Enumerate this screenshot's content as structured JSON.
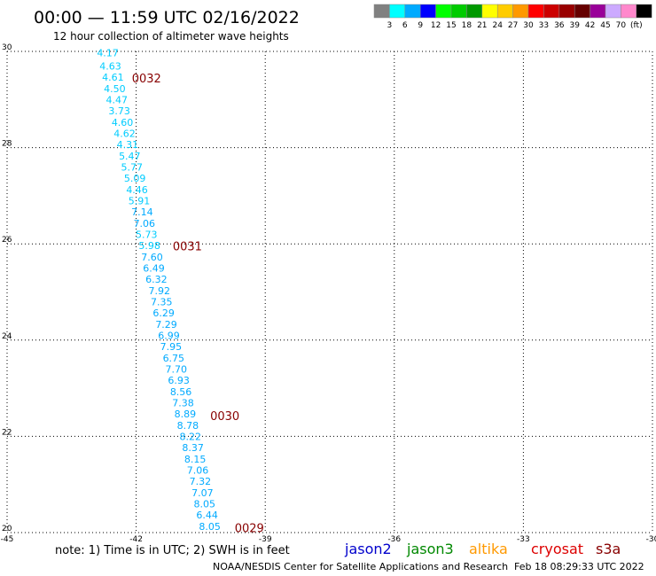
{
  "header": {
    "title": "00:00 — 11:59 UTC 02/16/2022",
    "subtitle": "12 hour collection of altimeter wave heights"
  },
  "color_scale": {
    "colors": [
      "#808080",
      "#00ffff",
      "#00aaff",
      "#0000ff",
      "#00ff00",
      "#00cc00",
      "#009900",
      "#ffff00",
      "#ffcc00",
      "#ff9900",
      "#ff0000",
      "#cc0000",
      "#990000",
      "#660000",
      "#990099",
      "#ccaaff",
      "#ff88cc",
      "#000000"
    ],
    "labels": [
      "3",
      "6",
      "9",
      "12",
      "15",
      "18",
      "21",
      "24",
      "27",
      "30",
      "33",
      "36",
      "39",
      "42",
      "45",
      "70",
      "(ft)"
    ]
  },
  "chart_data": {
    "type": "scatter",
    "title": "00:00 — 11:59 UTC 02/16/2022",
    "subtitle": "12 hour collection of altimeter wave heights",
    "xlim": [
      -45,
      -30
    ],
    "ylim": [
      20,
      30
    ],
    "x_ticks": [
      "-45",
      "-42",
      "-39",
      "-36",
      "-33",
      "-30"
    ],
    "y_ticks": [
      "30",
      "28",
      "26",
      "24",
      "22",
      "20"
    ],
    "y_tick_values": [
      30,
      28,
      26,
      24,
      22,
      20
    ],
    "grid": true,
    "points": [
      {
        "x": -42.66,
        "y": 29.97,
        "label": "4.17",
        "color": "#00ccff"
      },
      {
        "x": -42.6,
        "y": 29.7,
        "label": "4.63",
        "color": "#00ccff"
      },
      {
        "x": -42.54,
        "y": 29.47,
        "label": "4.61",
        "color": "#00ccff"
      },
      {
        "x": -42.5,
        "y": 29.23,
        "label": "4.50",
        "color": "#00ccff"
      },
      {
        "x": -42.45,
        "y": 29,
        "label": "4.47",
        "color": "#00ccff"
      },
      {
        "x": -42.39,
        "y": 28.77,
        "label": "3.73",
        "color": "#00ccff"
      },
      {
        "x": -42.32,
        "y": 28.53,
        "label": "4.60",
        "color": "#00ccff"
      },
      {
        "x": -42.27,
        "y": 28.3,
        "label": "4.62",
        "color": "#00ccff"
      },
      {
        "x": -42.2,
        "y": 28.07,
        "label": "4.31",
        "color": "#00ccff"
      },
      {
        "x": -42.15,
        "y": 27.83,
        "label": "5.47",
        "color": "#00ccff"
      },
      {
        "x": -42.1,
        "y": 27.6,
        "label": "5.77",
        "color": "#00ccff"
      },
      {
        "x": -42.03,
        "y": 27.37,
        "label": "5.09",
        "color": "#00ccff"
      },
      {
        "x": -41.98,
        "y": 27.13,
        "label": "4.46",
        "color": "#00ccff"
      },
      {
        "x": -41.93,
        "y": 26.9,
        "label": "5.91",
        "color": "#00ccff"
      },
      {
        "x": -41.86,
        "y": 26.67,
        "label": "7.14",
        "color": "#00aaff"
      },
      {
        "x": -41.81,
        "y": 26.43,
        "label": "7.06",
        "color": "#00aaff"
      },
      {
        "x": -41.76,
        "y": 26.2,
        "label": "5.73",
        "color": "#00ccff"
      },
      {
        "x": -41.69,
        "y": 25.97,
        "label": "5.98",
        "color": "#00ccff"
      },
      {
        "x": -41.63,
        "y": 25.73,
        "label": "7.60",
        "color": "#00aaff"
      },
      {
        "x": -41.59,
        "y": 25.5,
        "label": "6.49",
        "color": "#00aaff"
      },
      {
        "x": -41.53,
        "y": 25.27,
        "label": "6.32",
        "color": "#00aaff"
      },
      {
        "x": -41.46,
        "y": 25.03,
        "label": "7.92",
        "color": "#00aaff"
      },
      {
        "x": -41.41,
        "y": 24.8,
        "label": "7.35",
        "color": "#00aaff"
      },
      {
        "x": -41.36,
        "y": 24.57,
        "label": "6.29",
        "color": "#00aaff"
      },
      {
        "x": -41.3,
        "y": 24.33,
        "label": "7.29",
        "color": "#00aaff"
      },
      {
        "x": -41.24,
        "y": 24.1,
        "label": "6.99",
        "color": "#00aaff"
      },
      {
        "x": -41.19,
        "y": 23.87,
        "label": "7.95",
        "color": "#00aaff"
      },
      {
        "x": -41.13,
        "y": 23.63,
        "label": "6.75",
        "color": "#00aaff"
      },
      {
        "x": -41.07,
        "y": 23.4,
        "label": "7.70",
        "color": "#00aaff"
      },
      {
        "x": -41.01,
        "y": 23.17,
        "label": "6.93",
        "color": "#00aaff"
      },
      {
        "x": -40.96,
        "y": 22.93,
        "label": "8.56",
        "color": "#00aaff"
      },
      {
        "x": -40.91,
        "y": 22.7,
        "label": "7.38",
        "color": "#00aaff"
      },
      {
        "x": -40.86,
        "y": 22.47,
        "label": "8.89",
        "color": "#00aaff"
      },
      {
        "x": -40.8,
        "y": 22.23,
        "label": "8.78",
        "color": "#00aaff"
      },
      {
        "x": -40.74,
        "y": 22,
        "label": "8.22",
        "color": "#00aaff"
      },
      {
        "x": -40.68,
        "y": 21.77,
        "label": "8.37",
        "color": "#00aaff"
      },
      {
        "x": -40.63,
        "y": 21.53,
        "label": "8.15",
        "color": "#00aaff"
      },
      {
        "x": -40.57,
        "y": 21.3,
        "label": "7.06",
        "color": "#00aaff"
      },
      {
        "x": -40.51,
        "y": 21.07,
        "label": "7.32",
        "color": "#00aaff"
      },
      {
        "x": -40.46,
        "y": 20.83,
        "label": "7.07",
        "color": "#00aaff"
      },
      {
        "x": -40.41,
        "y": 20.6,
        "label": "8.05",
        "color": "#00aaff"
      },
      {
        "x": -40.35,
        "y": 20.37,
        "label": "6.44",
        "color": "#00aaff"
      },
      {
        "x": -40.29,
        "y": 20.13,
        "label": "8.05",
        "color": "#00aaff"
      }
    ],
    "time_labels": [
      {
        "x": -42.1,
        "y": 29.45,
        "label": "0032",
        "color": "#880000"
      },
      {
        "x": -41.15,
        "y": 25.96,
        "label": "0031",
        "color": "#880000"
      },
      {
        "x": -40.28,
        "y": 22.43,
        "label": "0030",
        "color": "#880000"
      },
      {
        "x": -39.71,
        "y": 20.1,
        "label": "0029",
        "color": "#880000"
      }
    ]
  },
  "footer": {
    "note": "note:  1) Time is in UTC;  2) SWH is in feet",
    "missions": [
      {
        "name": "jason2",
        "color": "#0000cc"
      },
      {
        "name": "jason3",
        "color": "#008800"
      },
      {
        "name": "altika",
        "color": "#ff9900"
      },
      {
        "name": "cryosat",
        "color": "#dd0000"
      },
      {
        "name": "s3a",
        "color": "#880000"
      }
    ],
    "credit": "NOAA/NESDIS Center for Satellite Applications and Research",
    "timestamp": "Feb 18 08:29:33 UTC 2022"
  }
}
